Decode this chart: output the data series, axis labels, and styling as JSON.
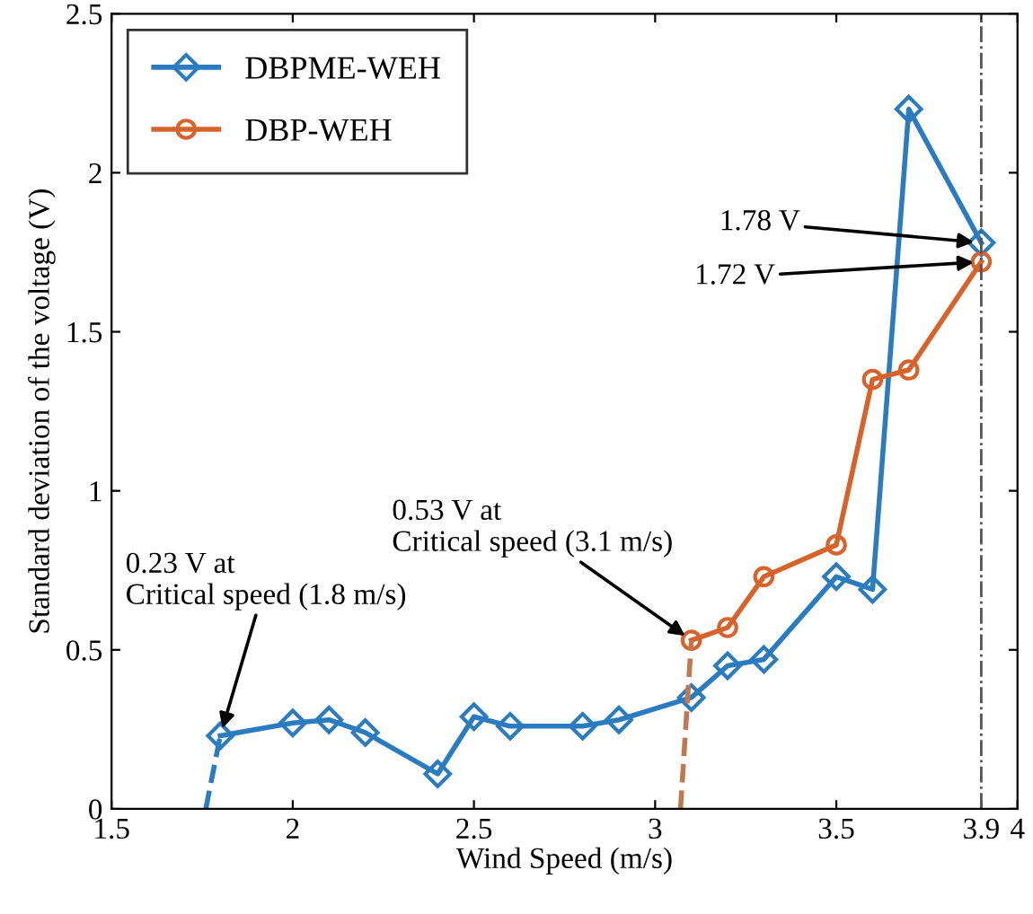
{
  "chart_data": {
    "type": "line",
    "xlabel": "Wind Speed (m/s)",
    "ylabel": "Standard deviation of the voltage (V)",
    "series": [
      {
        "name": "DBPME-WEH",
        "color": "#2a7bbf",
        "marker": "diamond",
        "line_style": "solid",
        "x": [
          1.8,
          2,
          2.1,
          2.2,
          2.4,
          2.5,
          2.6,
          2.8,
          2.9,
          3.1,
          3.2,
          3.3,
          3.5,
          3.6,
          3.7,
          3.9
        ],
        "values": [
          0.23,
          0.27,
          0.28,
          0.24,
          0.11,
          0.29,
          0.26,
          0.26,
          0.28,
          0.35,
          0.45,
          0.47,
          0.73,
          0.69,
          2.2,
          1.78
        ]
      },
      {
        "name": "DBP-WEH",
        "color": "#d9622b",
        "marker": "circle",
        "line_style": "solid",
        "x": [
          3.1,
          3.2,
          3.3,
          3.5,
          3.6,
          3.7,
          3.9
        ],
        "values": [
          0.53,
          0.57,
          0.73,
          0.83,
          1.35,
          1.38,
          1.72
        ]
      },
      {
        "color": "#2a7bbf",
        "marker": "none",
        "line_style": "dashed",
        "x": [
          1.76,
          1.8
        ],
        "values": [
          0,
          0.23
        ]
      },
      {
        "color": "#c07850",
        "marker": "none",
        "line_style": "dashed",
        "x": [
          3.07,
          3.1
        ],
        "values": [
          0,
          0.53
        ]
      }
    ],
    "xlim": [
      1.5,
      4
    ],
    "xticks": [
      1.5,
      2,
      2.5,
      3,
      3.5,
      3.9,
      4
    ],
    "ylim": [
      0,
      2.5
    ],
    "yticks": [
      0,
      0.5,
      1,
      1.5,
      2,
      2.5
    ],
    "ref_lines": [
      {
        "axis": "x",
        "value": 3.9,
        "color": "#555555",
        "line_style": "dashdot"
      }
    ],
    "annotations": [
      {
        "text": "1.78 V",
        "x": 3.9,
        "y": 1.78
      },
      {
        "text": "1.72 V",
        "x": 3.9,
        "y": 1.72
      },
      {
        "text": "0.53 V at\nCritical speed (3.1 m/s)",
        "x": 3.1,
        "y": 0.53
      },
      {
        "text": "0.23 V at\nCritical speed (1.8 m/s)",
        "x": 1.8,
        "y": 0.23
      }
    ],
    "grid": false,
    "legend": "top left"
  }
}
